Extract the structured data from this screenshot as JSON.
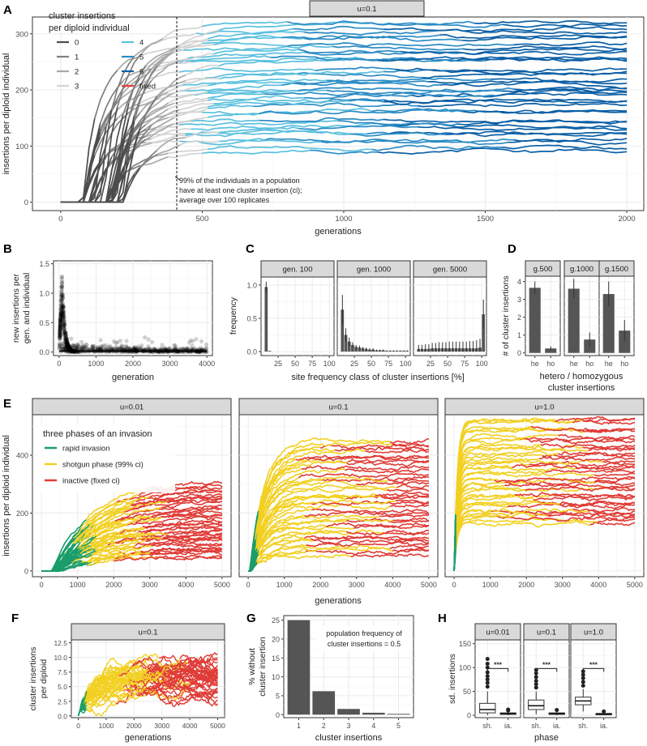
{
  "colors": {
    "ci0": "#4d4d4d",
    "ci1": "#7f7f7f",
    "ci2": "#a9a9a9",
    "ci3": "#d3d3d3",
    "ci4": "#5bc0de",
    "ci5": "#2b8cc4",
    "ci6": "#0b5fa5",
    "fixed": "#e8413a",
    "rapid": "#1a9d6a",
    "shotgun": "#f2d022",
    "inactive": "#e03b36",
    "bar": "#555555",
    "strip": "#d9d9d9",
    "grid": "#ebebeb"
  },
  "panel_letters": [
    "A",
    "B",
    "C",
    "D",
    "E",
    "F",
    "G",
    "H"
  ],
  "chart_data": [
    {
      "id": "A",
      "type": "line",
      "strip": "u=0.1",
      "xlabel": "generations",
      "ylabel": "insertions per diploid individual",
      "xlim": [
        -100,
        2060
      ],
      "ylim": [
        -15,
        330
      ],
      "xticks": [
        0,
        500,
        1000,
        1500,
        2000
      ],
      "yticks": [
        0,
        100,
        200,
        300
      ],
      "legend": {
        "title_line1": "cluster insertions",
        "title_line2": "per diploid individual",
        "entries": [
          {
            "label": "0",
            "color": "ci0"
          },
          {
            "label": "4",
            "color": "ci4"
          },
          {
            "label": "1",
            "color": "ci1"
          },
          {
            "label": "5",
            "color": "ci5"
          },
          {
            "label": "2",
            "color": "ci2"
          },
          {
            "label": "6",
            "color": "ci6"
          },
          {
            "label": "3",
            "color": "ci3"
          },
          {
            "label": "fixed",
            "color": "fixed"
          }
        ]
      },
      "vline": 410,
      "annotation": [
        "99% of the individuals in a population",
        "have at least one cluster insertion (ci);",
        "average over 100 replicates"
      ],
      "n_lines": 38,
      "final_range": [
        95,
        320
      ]
    },
    {
      "id": "B",
      "type": "scatter",
      "xlabel": "generation",
      "ylabel_line1": "new insertions per",
      "ylabel_line2": "gen. and individual",
      "xlim": [
        -150,
        4150
      ],
      "ylim": [
        -0.06,
        1.55
      ],
      "xticks": [
        0,
        1000,
        2000,
        3000,
        4000
      ],
      "yticks": [
        0.0,
        0.5,
        1.0,
        1.5
      ],
      "ytick_labels": [
        "0.0",
        "0.5",
        "1.0",
        "1.5"
      ],
      "peak": {
        "x": 80,
        "y": 1.3
      }
    },
    {
      "id": "C",
      "type": "bar",
      "xlabel": "site frequency class of cluster insertions [%]",
      "ylabel": "frequency",
      "ylim": [
        -0.06,
        1.12
      ],
      "yticks": [
        0.0,
        0.5,
        1.0
      ],
      "ytick_labels": [
        "0.0",
        "0.5",
        "1.0"
      ],
      "xticks": [
        25,
        50,
        75,
        100
      ],
      "facets": [
        {
          "strip": "gen. 100",
          "values": [
            0.97,
            0.01,
            0,
            0,
            0,
            0,
            0,
            0,
            0,
            0,
            0,
            0,
            0,
            0,
            0,
            0,
            0,
            0,
            0,
            0
          ],
          "err": [
            0.08,
            0,
            0,
            0,
            0,
            0,
            0,
            0,
            0,
            0,
            0,
            0,
            0,
            0,
            0,
            0,
            0,
            0,
            0,
            0
          ]
        },
        {
          "strip": "gen. 1000",
          "values": [
            0.63,
            0.25,
            0.15,
            0.1,
            0.07,
            0.06,
            0.05,
            0.04,
            0.03,
            0.03,
            0.02,
            0.02,
            0.02,
            0.01,
            0.01,
            0.01,
            0.01,
            0.01,
            0.01,
            0.01
          ],
          "err": [
            0.22,
            0.1,
            0.06,
            0.04,
            0.03,
            0.03,
            0.02,
            0.02,
            0.02,
            0.02,
            0.01,
            0.01,
            0.01,
            0.01,
            0.01,
            0.01,
            0.01,
            0.01,
            0.01,
            0.01
          ]
        },
        {
          "strip": "gen. 5000",
          "values": [
            0.04,
            0.04,
            0.04,
            0.04,
            0.05,
            0.05,
            0.05,
            0.05,
            0.05,
            0.05,
            0.05,
            0.05,
            0.05,
            0.05,
            0.05,
            0.05,
            0.05,
            0.05,
            0.06,
            0.56
          ],
          "err": [
            0.06,
            0.06,
            0.07,
            0.07,
            0.08,
            0.08,
            0.09,
            0.09,
            0.09,
            0.1,
            0.1,
            0.1,
            0.1,
            0.1,
            0.1,
            0.11,
            0.11,
            0.12,
            0.13,
            0.22
          ]
        }
      ]
    },
    {
      "id": "D",
      "type": "bar",
      "ylabel": "# of cluster insertions",
      "xlabel_line1": "hetero / homozygous",
      "xlabel_line2": "cluster insertions",
      "ylim": [
        -0.15,
        4.3
      ],
      "yticks": [
        0,
        1,
        2,
        3,
        4
      ],
      "categories": [
        "he",
        "ho"
      ],
      "facets": [
        {
          "strip": "g.500",
          "values": [
            3.65,
            0.25
          ],
          "err": [
            0.35,
            0.12
          ]
        },
        {
          "strip": "g.1000",
          "values": [
            3.6,
            0.75
          ],
          "err": [
            0.55,
            0.4
          ]
        },
        {
          "strip": "g.1500",
          "values": [
            3.3,
            1.25
          ],
          "err": [
            0.7,
            0.6
          ]
        }
      ]
    },
    {
      "id": "E",
      "type": "line",
      "xlabel": "generations",
      "ylabel": "insertions per diploid individual",
      "xlim": [
        -250,
        5250
      ],
      "ylim": [
        -20,
        540
      ],
      "xticks": [
        0,
        1000,
        2000,
        3000,
        4000,
        5000
      ],
      "yticks": [
        0,
        200,
        400
      ],
      "legend": {
        "title": "three phases of an invasion",
        "entries": [
          {
            "label": "rapid invasion",
            "color": "rapid"
          },
          {
            "label": "shotgun phase (99% ci)",
            "color": "shotgun"
          },
          {
            "label": "inactive (fixed ci)",
            "color": "inactive"
          }
        ]
      },
      "facets": [
        {
          "strip": "u=0.01",
          "t1": [
            800,
            1500
          ],
          "t2": [
            1800,
            3500
          ],
          "y1": [
            80,
            230
          ],
          "final": [
            50,
            305
          ],
          "grow": 900
        },
        {
          "strip": "u=0.1",
          "t1": [
            150,
            280
          ],
          "t2": [
            1200,
            4200
          ],
          "y1": [
            60,
            190
          ],
          "final": [
            60,
            455
          ],
          "grow": 260
        },
        {
          "strip": "u=1.0",
          "t1": [
            10,
            40
          ],
          "t2": [
            900,
            4200
          ],
          "y1": [
            180,
            260
          ],
          "final": [
            170,
            525
          ],
          "grow": 60
        }
      ]
    },
    {
      "id": "F",
      "type": "line",
      "strip": "u=0.1",
      "xlabel": "generations",
      "ylabel_line1": "cluster insertions",
      "ylabel_line2": "per diploid",
      "xlim": [
        -250,
        5250
      ],
      "ylim": [
        -0.3,
        13
      ],
      "xticks": [
        0,
        1000,
        2000,
        3000,
        4000,
        5000
      ],
      "yticks": [
        0.0,
        2.5,
        5.0,
        7.5,
        10.0,
        12.5
      ],
      "ytick_labels": [
        "0.0",
        "2.5",
        "5.0",
        "7.5",
        "10.0",
        "12.5"
      ]
    },
    {
      "id": "G",
      "type": "bar",
      "xlabel": "cluster insertions",
      "ylabel_line1": "% without",
      "ylabel_line2": "cluster insertion",
      "categories": [
        "1",
        "2",
        "3",
        "4",
        "5"
      ],
      "values": [
        25,
        6.2,
        1.5,
        0.5,
        0.2
      ],
      "ylim": [
        -0.8,
        26.2
      ],
      "yticks": [
        0,
        5,
        10,
        15,
        20,
        25
      ],
      "annotation": [
        "population frequency of",
        "cluster insertions = 0.5"
      ]
    },
    {
      "id": "H",
      "type": "boxplot",
      "xlabel": "phase",
      "ylabel": "sd. insertions",
      "ylim": [
        -5,
        158
      ],
      "yticks": [
        0,
        50,
        100,
        150
      ],
      "categories": [
        "sh.",
        "ia."
      ],
      "signif": "***",
      "facets": [
        {
          "strip": "u=0.01",
          "sh": {
            "q1": 5,
            "med": 12,
            "q3": 25,
            "lo": 0,
            "hi": 50,
            "out": [
              60,
              68,
              75,
              82,
              90,
              100,
              108,
              118
            ]
          },
          "ia": {
            "q1": 2,
            "med": 3,
            "q3": 5,
            "lo": 0,
            "hi": 8,
            "out": [
              10,
              12
            ]
          }
        },
        {
          "strip": "u=0.1",
          "sh": {
            "q1": 12,
            "med": 20,
            "q3": 32,
            "lo": 2,
            "hi": 50,
            "out": [
              58,
              65,
              72,
              80,
              88,
              95
            ]
          },
          "ia": {
            "q1": 2,
            "med": 3,
            "q3": 5,
            "lo": 0,
            "hi": 8,
            "out": [
              11
            ]
          }
        },
        {
          "strip": "u=1.0",
          "sh": {
            "q1": 22,
            "med": 30,
            "q3": 38,
            "lo": 8,
            "hi": 55,
            "out": [
              62,
              70,
              78,
              85,
              92
            ]
          },
          "ia": {
            "q1": 1,
            "med": 2,
            "q3": 4,
            "lo": 0,
            "hi": 6,
            "out": [
              8
            ]
          }
        }
      ]
    }
  ]
}
